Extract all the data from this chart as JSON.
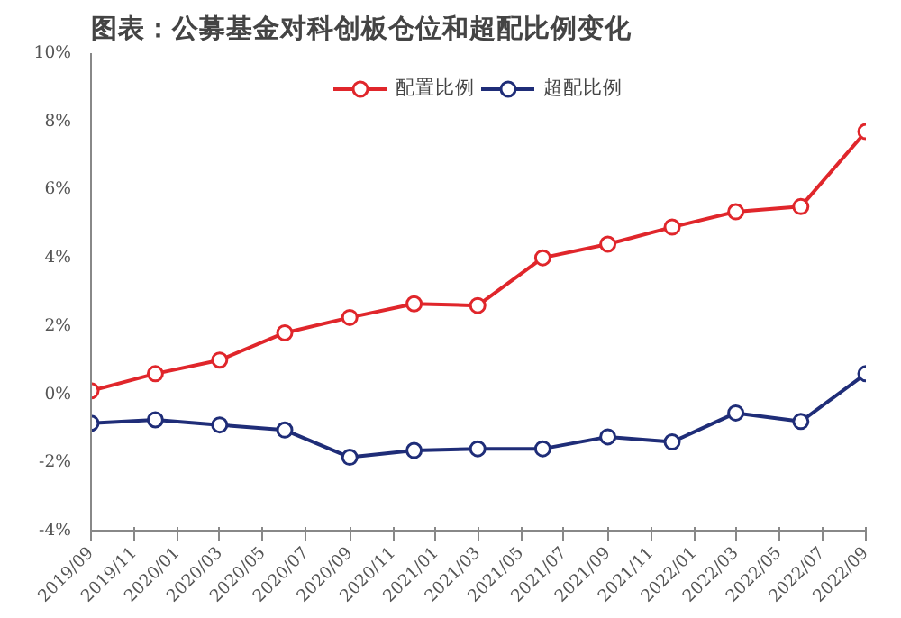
{
  "chart_data": {
    "type": "line",
    "title": "图表：公募基金对科创板仓位和超配比例变化",
    "x": [
      "2019-09",
      "2019-12",
      "2020-03",
      "2020-06",
      "2020-09",
      "2020-12",
      "2021-03",
      "2021-06",
      "2021-09",
      "2021-12",
      "2022-03",
      "2022-06",
      "2022-09"
    ],
    "series": [
      {
        "name": "配置比例",
        "color": "#e0262b",
        "values": [
          0.1,
          0.6,
          1.0,
          1.8,
          2.25,
          2.65,
          2.6,
          4.0,
          4.4,
          4.9,
          5.35,
          5.5,
          7.7
        ]
      },
      {
        "name": "超配比例",
        "color": "#1f2d78",
        "values": [
          -0.85,
          -0.75,
          -0.9,
          -1.05,
          -1.85,
          -1.65,
          -1.6,
          -1.6,
          -1.25,
          -1.4,
          -0.55,
          -0.8,
          0.6
        ]
      }
    ],
    "xlim": [
      "2019-09",
      "2022-09"
    ],
    "xticks": [
      {
        "value": "2019-09",
        "label": "2019/09"
      },
      {
        "value": "2019-11",
        "label": "2019/11"
      },
      {
        "value": "2020-01",
        "label": "2020/01"
      },
      {
        "value": "2020-03",
        "label": "2020/03"
      },
      {
        "value": "2020-05",
        "label": "2020/05"
      },
      {
        "value": "2020-07",
        "label": "2020/07"
      },
      {
        "value": "2020-09",
        "label": "2020/09"
      },
      {
        "value": "2020-11",
        "label": "2020/11"
      },
      {
        "value": "2021-01",
        "label": "2021/01"
      },
      {
        "value": "2021-03",
        "label": "2021/03"
      },
      {
        "value": "2021-05",
        "label": "2021/05"
      },
      {
        "value": "2021-07",
        "label": "2021/07"
      },
      {
        "value": "2021-09",
        "label": "2021/09"
      },
      {
        "value": "2021-11",
        "label": "2021/11"
      },
      {
        "value": "2022-01",
        "label": "2022/01"
      },
      {
        "value": "2022-03",
        "label": "2022/03"
      },
      {
        "value": "2022-05",
        "label": "2022/05"
      },
      {
        "value": "2022-07",
        "label": "2022/07"
      },
      {
        "value": "2022-09",
        "label": "2022/09"
      }
    ],
    "ylim": [
      -4,
      10
    ],
    "yticks": [
      {
        "value": -4,
        "label": "-4%"
      },
      {
        "value": -2,
        "label": "-2%"
      },
      {
        "value": 0,
        "label": "0%"
      },
      {
        "value": 2,
        "label": "2%"
      },
      {
        "value": 4,
        "label": "4%"
      },
      {
        "value": 6,
        "label": "6%"
      },
      {
        "value": 8,
        "label": "8%"
      },
      {
        "value": 10,
        "label": "10%"
      }
    ],
    "grid": false,
    "legend": "top",
    "marker": "circle",
    "line_style": "solid"
  }
}
